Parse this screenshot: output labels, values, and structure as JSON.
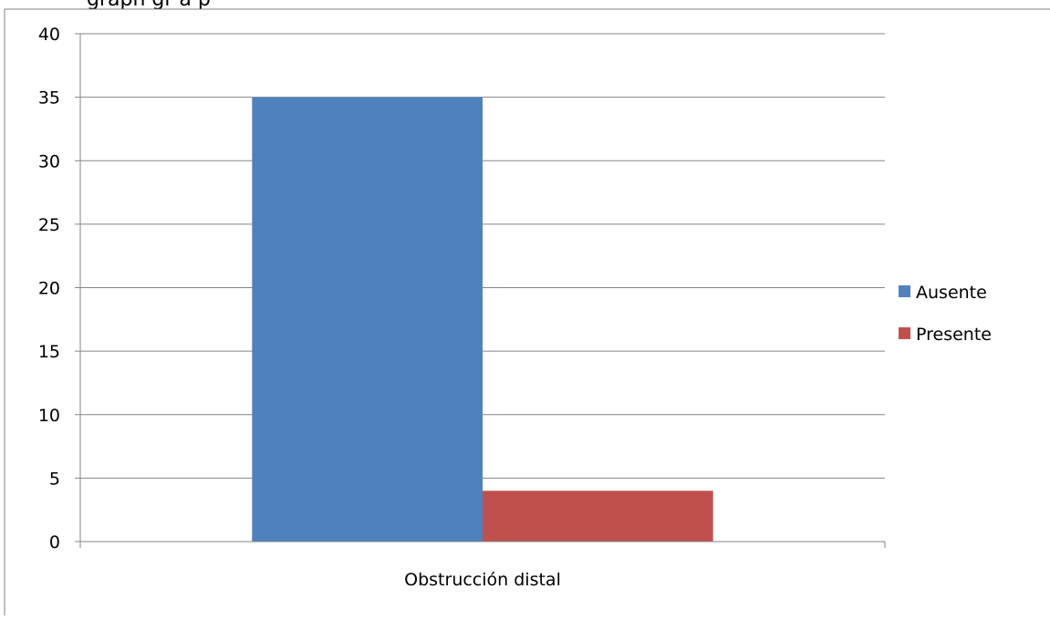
{
  "header_text": "grapĥ gr â p",
  "chart_data": {
    "type": "bar",
    "categories": [
      "Obstrucción distal"
    ],
    "series": [
      {
        "name": "Ausente",
        "values": [
          35
        ],
        "color": "#4F81BD"
      },
      {
        "name": "Presente",
        "values": [
          4
        ],
        "color": "#C0504D"
      }
    ],
    "ylim": [
      0,
      40
    ],
    "yticks": [
      0,
      5,
      10,
      15,
      20,
      25,
      30,
      35,
      40
    ],
    "grid": true,
    "legend": "right"
  }
}
